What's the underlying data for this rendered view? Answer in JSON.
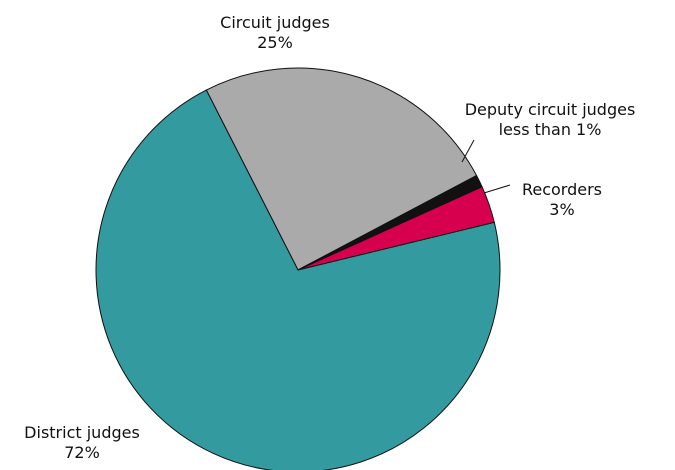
{
  "chart_data": {
    "type": "pie",
    "categories": [
      "Circuit judges",
      "Deputy circuit judges",
      "Recorders",
      "District judges"
    ],
    "values": [
      25,
      1,
      3,
      72
    ],
    "value_labels": [
      "25%",
      "less than 1%",
      "3%",
      "72%"
    ],
    "colors": [
      "#aaaaaa",
      "#111111",
      "#d6004f",
      "#339aa0"
    ]
  }
}
